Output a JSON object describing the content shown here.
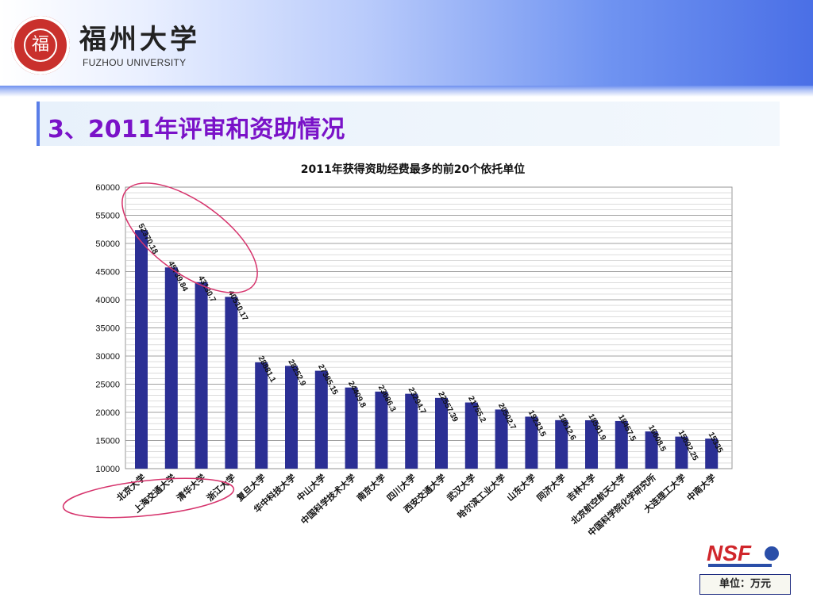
{
  "header": {
    "university_cn": "福州大学",
    "university_en": "FUZHOU UNIVERSITY",
    "seal_char": "福"
  },
  "section": {
    "title": "3、2011年评审和资助情况"
  },
  "chart_data": {
    "type": "bar",
    "title": "2011年获得资助经费最多的前20个依托单位",
    "categories": [
      "北京大学",
      "上海交通大学",
      "清华大学",
      "浙江大学",
      "复旦大学",
      "华中科技大学",
      "中山大学",
      "中国科学技术大学",
      "南京大学",
      "四川大学",
      "西安交通大学",
      "武汉大学",
      "哈尔滨工业大学",
      "山东大学",
      "同济大学",
      "吉林大学",
      "北京航空航天大学",
      "中国科学院化学研究所",
      "大连理工大学",
      "中南大学"
    ],
    "values": [
      52370.18,
      45739.84,
      43130.7,
      40510.17,
      28881.1,
      28252.9,
      27385.15,
      24409.8,
      23686.3,
      23294.7,
      22557.39,
      21755.2,
      20502.7,
      19233.5,
      18612.6,
      18591.9,
      18457.5,
      16608.5,
      15692.25,
      15335
    ],
    "value_labels": [
      "52370.18",
      "45739.84",
      "43130.7",
      "40510.17",
      "28881.1",
      "28252.9",
      "27385.15",
      "24409.8",
      "23686.3",
      "23294.7",
      "22557.39",
      "21755.2",
      "20502.7",
      "19233.5",
      "18612.6",
      "18591.9",
      "18457.5",
      "16608.5",
      "15692.25",
      "15335"
    ],
    "yticks": [
      "10000",
      "15000",
      "20000",
      "25000",
      "30000",
      "35000",
      "40000",
      "45000",
      "50000",
      "55000",
      "60000"
    ],
    "ylim": [
      10000,
      60000
    ],
    "grid": true,
    "bar_color": "#2b2f94",
    "highlight_color": "#d6336c",
    "highlighted_count": 4
  },
  "logo": {
    "text": "NSF"
  },
  "unit": {
    "label": "单位：万元"
  }
}
